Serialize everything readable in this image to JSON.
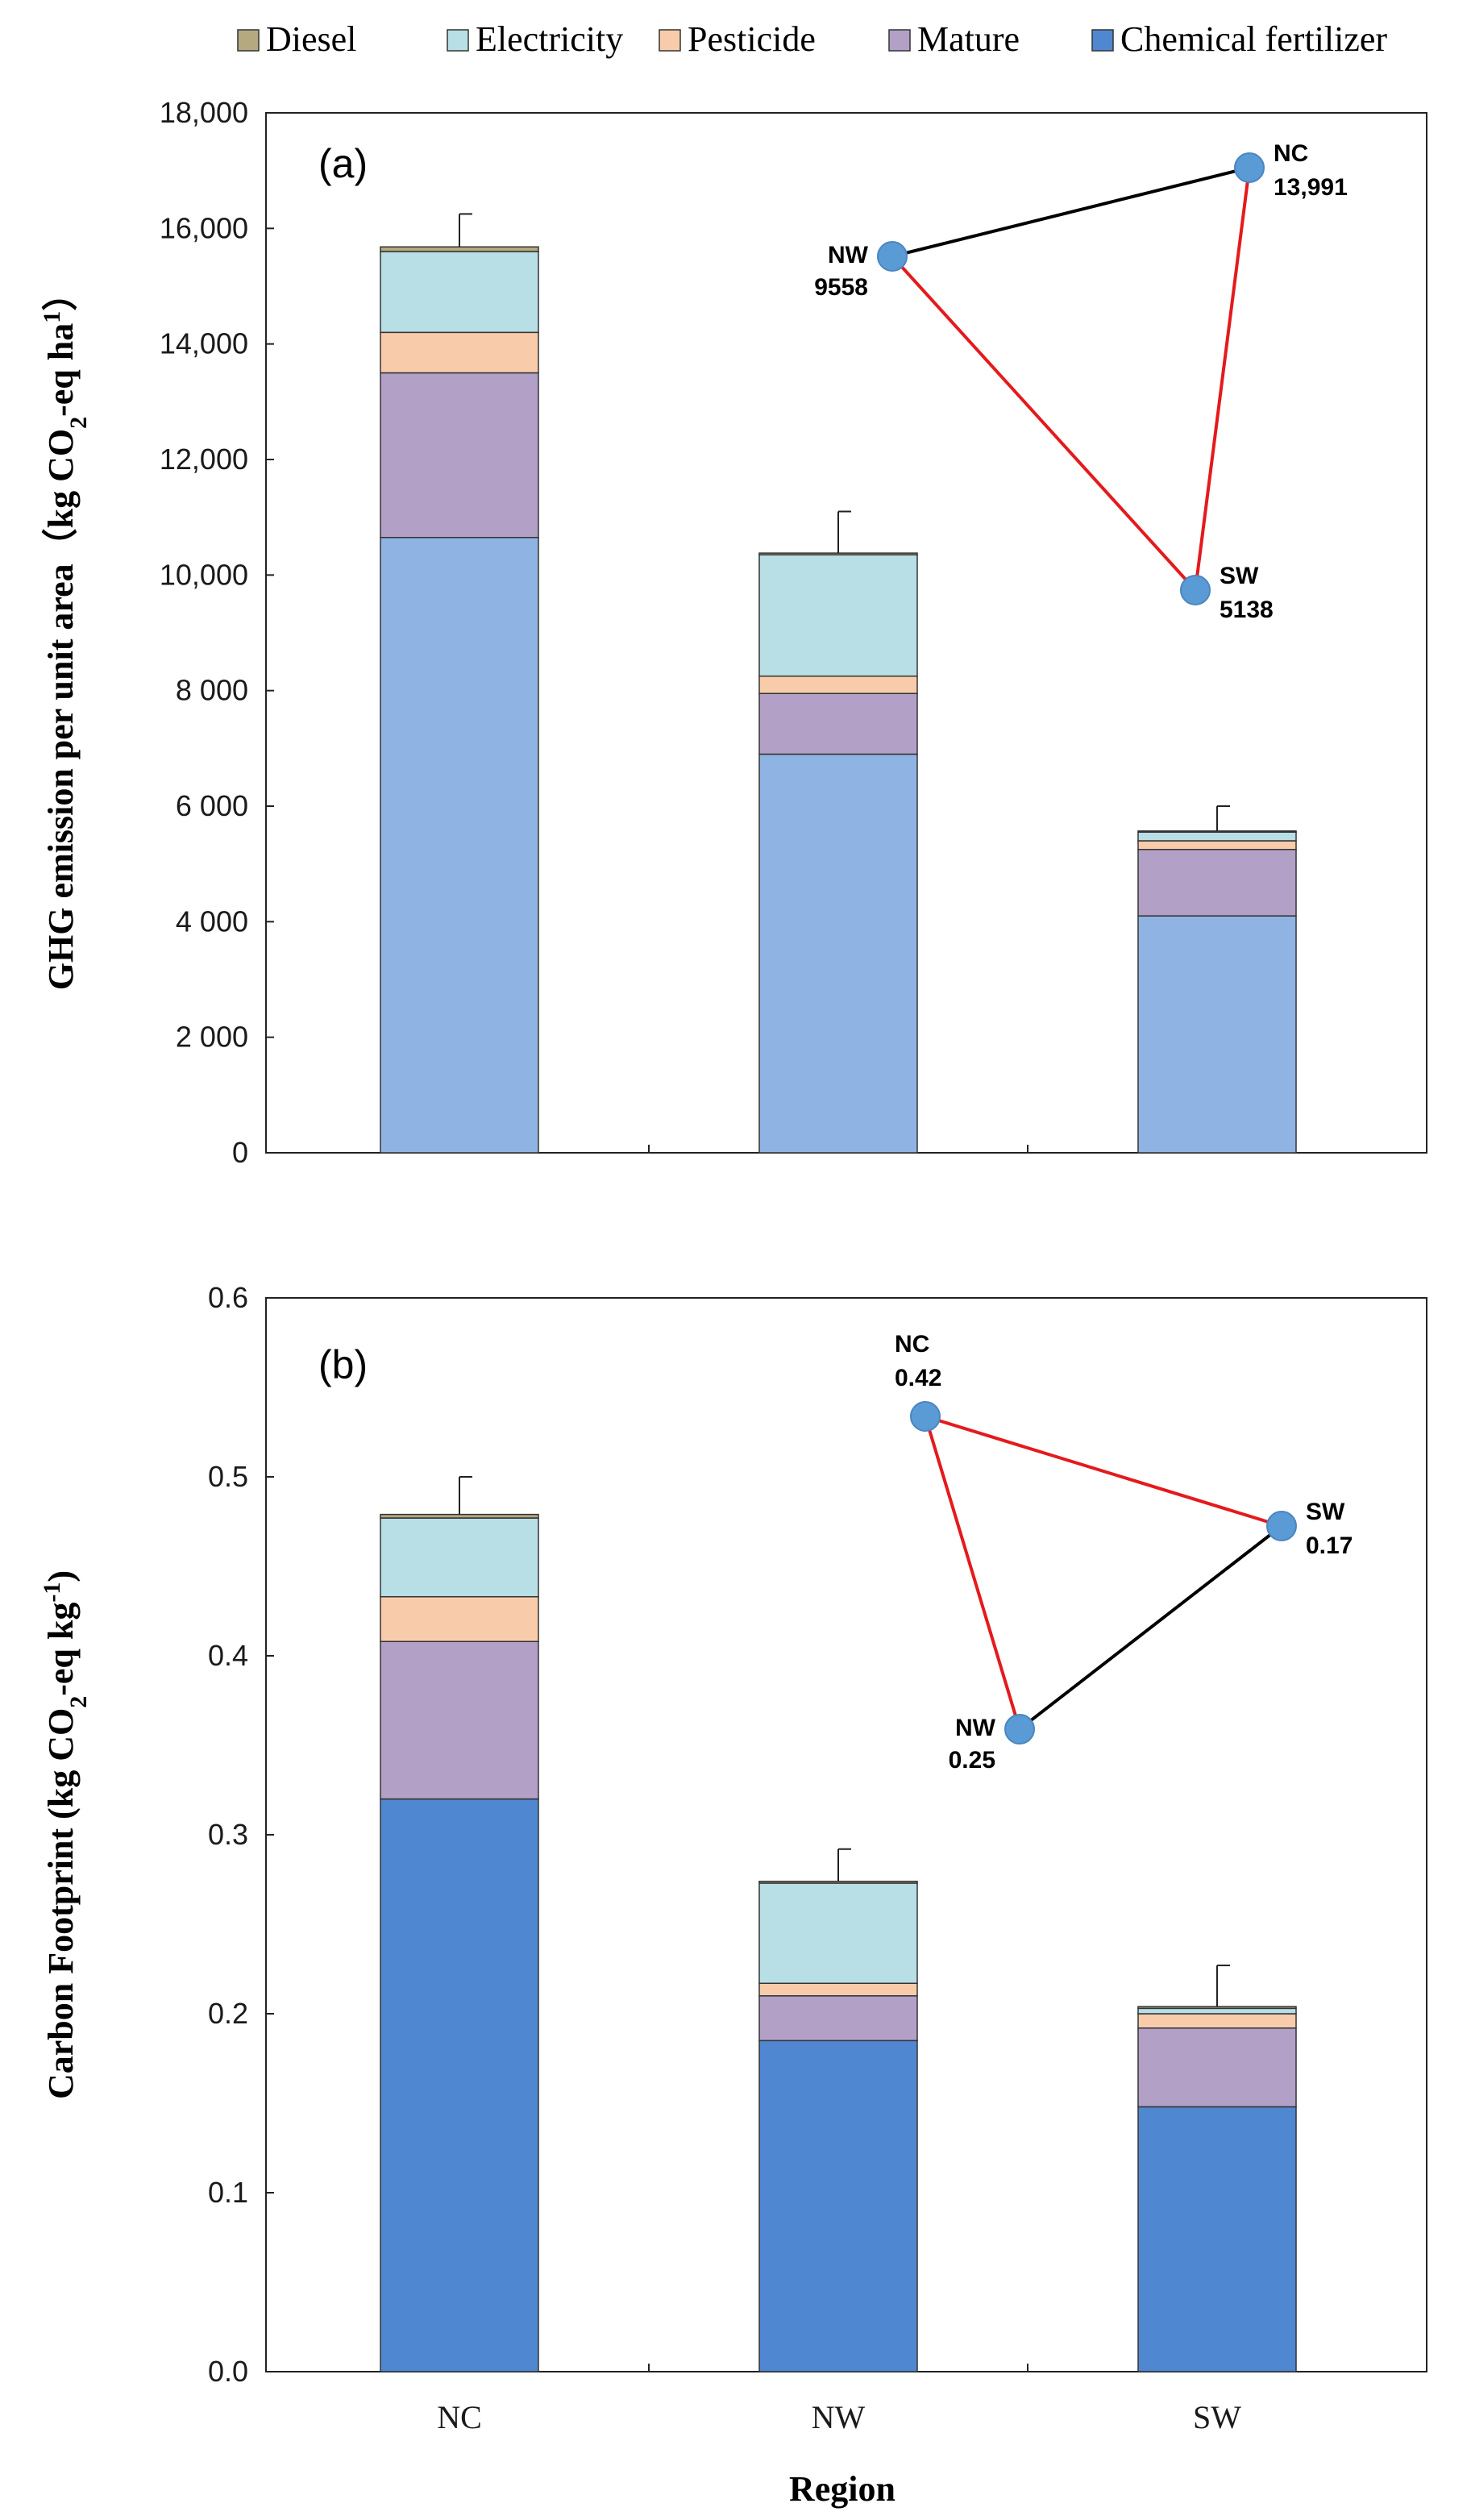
{
  "colors": {
    "diesel": "#b5a97f",
    "electricity": "#b8dee6",
    "pesticide": "#f8ccaa",
    "mature": "#b2a0c7",
    "chemical_fertilizer_a": "#8fb4e3",
    "chemical_fertilizer_b": "#5087d1",
    "tri_red": "#e41a1c",
    "tri_black": "#000000",
    "node_fill": "#5b9bd5"
  },
  "legend": {
    "items": [
      {
        "key": "diesel",
        "label": "Diesel"
      },
      {
        "key": "electricity",
        "label": "Electricity"
      },
      {
        "key": "pesticide",
        "label": "Pesticide"
      },
      {
        "key": "mature",
        "label": "Mature"
      },
      {
        "key": "chemical_fertilizer",
        "label": "Chemical fertilizer"
      }
    ]
  },
  "chart_data": [
    {
      "type": "bar",
      "stacked": true,
      "panel_label": "(a)",
      "title": "",
      "ylabel_pre": "GHG emission per unit area（kg CO",
      "ylabel_sub": "2",
      "ylabel_mid": "-eq ha",
      "ylabel_sup": "1",
      "ylabel_post": "）",
      "xlabel": "",
      "categories": [
        "NC",
        "NW",
        "SW"
      ],
      "ylim": [
        0,
        18000
      ],
      "yticks": [
        0,
        2000,
        4000,
        6000,
        8000,
        10000,
        12000,
        14000,
        16000,
        18000
      ],
      "ytick_labels": [
        "0",
        "2 000",
        "4 000",
        "6 000",
        "8 000",
        "10,000",
        "12,000",
        "14,000",
        "16,000",
        "18,000"
      ],
      "series": [
        {
          "name": "Chemical fertilizer",
          "key": "chemical_fertilizer",
          "values": [
            10650,
            6900,
            4100
          ]
        },
        {
          "name": "Mature",
          "key": "mature",
          "values": [
            2850,
            1050,
            1150
          ]
        },
        {
          "name": "Pesticide",
          "key": "pesticide",
          "values": [
            700,
            300,
            150
          ]
        },
        {
          "name": "Electricity",
          "key": "electricity",
          "values": [
            1400,
            2100,
            150
          ]
        },
        {
          "name": "Diesel",
          "key": "diesel",
          "values": [
            80,
            30,
            20
          ]
        }
      ],
      "error_tops": [
        16250,
        11100,
        6000
      ],
      "inset_triangle": {
        "nodes": [
          {
            "id": "NC",
            "name": "NC",
            "value": "13,991",
            "label_side": "right"
          },
          {
            "id": "NW",
            "name": "NW",
            "value": "9558",
            "label_side": "left"
          },
          {
            "id": "SW",
            "name": "SW",
            "value": "5138",
            "label_side": "right"
          }
        ],
        "edges": [
          {
            "from": "NW",
            "to": "NC",
            "color": "black"
          },
          {
            "from": "NC",
            "to": "SW",
            "color": "red"
          },
          {
            "from": "SW",
            "to": "NW",
            "color": "red"
          }
        ]
      }
    },
    {
      "type": "bar",
      "stacked": true,
      "panel_label": "(b)",
      "title": "",
      "ylabel_pre": "Carbon Footprint (kg CO",
      "ylabel_sub": "2",
      "ylabel_mid": "-eq kg",
      "ylabel_sup": "-1",
      "ylabel_post": ")",
      "xlabel": "Region",
      "categories": [
        "NC",
        "NW",
        "SW"
      ],
      "ylim": [
        0,
        0.6
      ],
      "yticks": [
        0,
        0.1,
        0.2,
        0.3,
        0.4,
        0.5,
        0.6
      ],
      "ytick_labels": [
        "0.0",
        "0.1",
        "0.2",
        "0.3",
        "0.4",
        "0.5",
        "0.6"
      ],
      "series": [
        {
          "name": "Chemical fertilizer",
          "key": "chemical_fertilizer",
          "values": [
            0.32,
            0.185,
            0.148
          ]
        },
        {
          "name": "Mature",
          "key": "mature",
          "values": [
            0.088,
            0.025,
            0.044
          ]
        },
        {
          "name": "Pesticide",
          "key": "pesticide",
          "values": [
            0.025,
            0.007,
            0.008
          ]
        },
        {
          "name": "Electricity",
          "key": "electricity",
          "values": [
            0.044,
            0.056,
            0.003
          ]
        },
        {
          "name": "Diesel",
          "key": "diesel",
          "values": [
            0.002,
            0.001,
            0.001
          ]
        }
      ],
      "error_tops": [
        0.5,
        0.292,
        0.227
      ],
      "inset_triangle": {
        "nodes": [
          {
            "id": "NC",
            "name": "NC",
            "value": "0.42",
            "label_side": "top"
          },
          {
            "id": "NW",
            "name": "NW",
            "value": "0.25",
            "label_side": "left"
          },
          {
            "id": "SW",
            "name": "SW",
            "value": "0.17",
            "label_side": "right"
          }
        ],
        "edges": [
          {
            "from": "NC",
            "to": "SW",
            "color": "red"
          },
          {
            "from": "NC",
            "to": "NW",
            "color": "red"
          },
          {
            "from": "NW",
            "to": "SW",
            "color": "black"
          }
        ]
      }
    }
  ]
}
